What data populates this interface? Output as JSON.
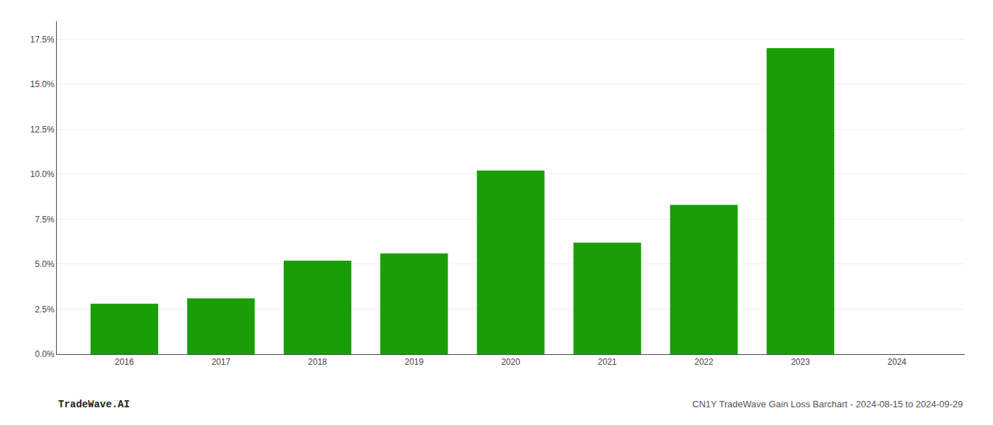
{
  "chart_data": {
    "type": "bar",
    "x": [
      2016,
      2017,
      2018,
      2019,
      2020,
      2021,
      2022,
      2023,
      2024
    ],
    "values": [
      0.028,
      0.031,
      0.052,
      0.056,
      0.102,
      0.062,
      0.083,
      0.17,
      null
    ],
    "color": "#1a9e06",
    "xlim": [
      2015.3,
      2024.7
    ],
    "xticks": [
      2016,
      2017,
      2018,
      2019,
      2020,
      2021,
      2022,
      2023,
      2024
    ],
    "ylim": [
      0,
      0.185
    ],
    "yticks": [
      {
        "value": 0.0,
        "label": "0.0%"
      },
      {
        "value": 0.025,
        "label": "2.5%"
      },
      {
        "value": 0.05,
        "label": "5.0%"
      },
      {
        "value": 0.075,
        "label": "7.5%"
      },
      {
        "value": 0.1,
        "label": "10.0%"
      },
      {
        "value": 0.125,
        "label": "12.5%"
      },
      {
        "value": 0.15,
        "label": "15.0%"
      },
      {
        "value": 0.175,
        "label": "17.5%"
      }
    ],
    "grid": true,
    "annotations": [
      "TradeWave.AI",
      "CN1Y TradeWave Gain Loss Barchart - 2024-08-15 to 2024-09-29"
    ]
  }
}
